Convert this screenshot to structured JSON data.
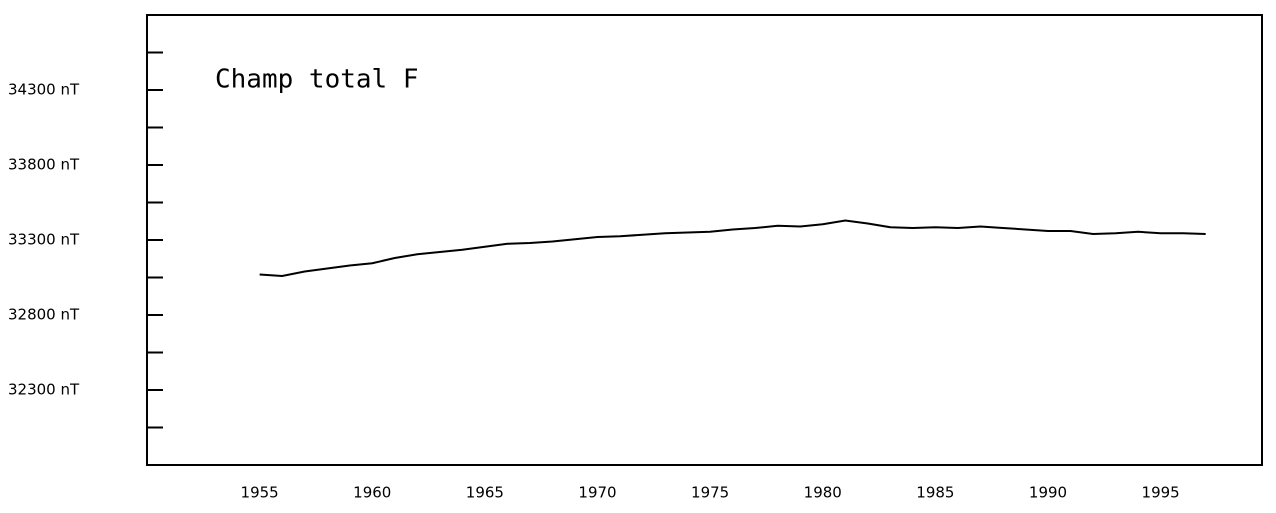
{
  "chart_data": {
    "type": "line",
    "title": "Champ total F",
    "x": [
      1955,
      1956,
      1957,
      1958,
      1959,
      1960,
      1961,
      1962,
      1963,
      1964,
      1965,
      1966,
      1967,
      1968,
      1969,
      1970,
      1971,
      1972,
      1973,
      1974,
      1975,
      1976,
      1977,
      1978,
      1979,
      1980,
      1981,
      1982,
      1983,
      1984,
      1985,
      1986,
      1987,
      1988,
      1989,
      1990,
      1991,
      1992,
      1993,
      1994,
      1995,
      1996,
      1997
    ],
    "series": [
      {
        "color": "#000000",
        "values": [
          33070,
          33060,
          33090,
          33110,
          33130,
          33145,
          33180,
          33205,
          33220,
          33235,
          33255,
          33275,
          33280,
          33290,
          33305,
          33320,
          33325,
          33335,
          33345,
          33350,
          33355,
          33370,
          33380,
          33395,
          33390,
          33405,
          33430,
          33410,
          33385,
          33380,
          33385,
          33380,
          33390,
          33380,
          33370,
          33360,
          33360,
          33340,
          33345,
          33355,
          33345,
          33345,
          33340
        ]
      }
    ],
    "xlim": [
      1950,
      1999.5
    ],
    "xticks": [
      1955,
      1960,
      1965,
      1970,
      1975,
      1980,
      1985,
      1990,
      1995
    ],
    "ylim": [
      31800,
      34800
    ],
    "yticks": [
      {
        "value": 34300,
        "label": "34300 nT"
      },
      {
        "value": 33800,
        "label": "33800 nT"
      },
      {
        "value": 33300,
        "label": "33300 nT"
      },
      {
        "value": 32800,
        "label": "32800 nT"
      },
      {
        "value": 32300,
        "label": "32300 nT"
      }
    ],
    "yminorticks": [
      34550,
      34050,
      33550,
      33050,
      32550,
      32050
    ]
  }
}
